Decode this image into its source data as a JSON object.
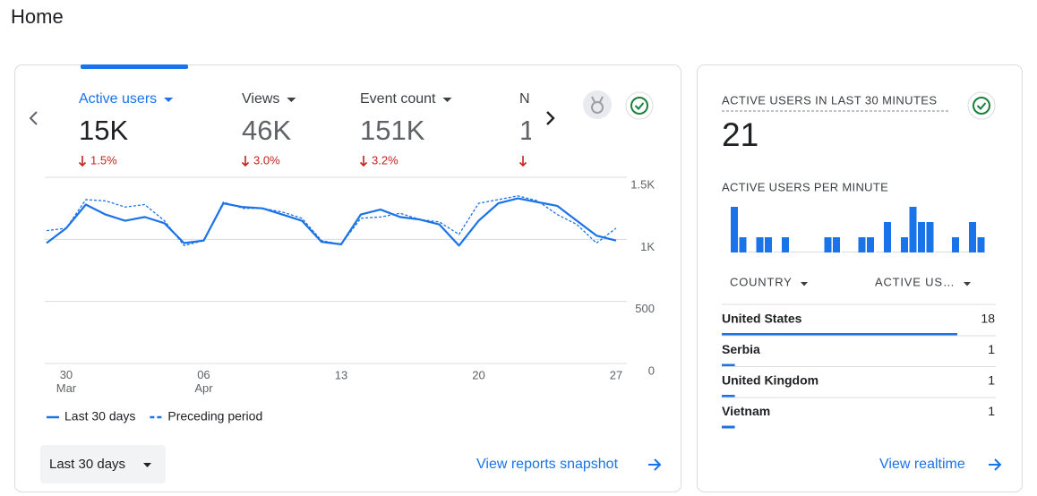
{
  "header": {
    "title": "Home"
  },
  "metrics": [
    {
      "label": "Active users",
      "value": "15K",
      "change": "1.5%"
    },
    {
      "label": "Views",
      "value": "46K",
      "change": "3.0%"
    },
    {
      "label": "Event count",
      "value": "151K",
      "change": "3.2%"
    },
    {
      "label": "N",
      "value": "1"
    }
  ],
  "chart_data": {
    "type": "line",
    "categories": [
      null,
      "30 Mar",
      null,
      null,
      null,
      null,
      null,
      null,
      "06 Apr",
      null,
      null,
      null,
      null,
      null,
      null,
      "13",
      null,
      null,
      null,
      null,
      null,
      null,
      "20",
      null,
      null,
      null,
      null,
      null,
      null,
      "27"
    ],
    "series": [
      {
        "name": "Last 30 days",
        "color": "#1a73e8",
        "style": "solid",
        "values": [
          970,
          1090,
          1280,
          1200,
          1150,
          1180,
          1130,
          970,
          990,
          1290,
          1260,
          1250,
          1200,
          1150,
          980,
          960,
          1200,
          1240,
          1180,
          1160,
          1120,
          950,
          1150,
          1290,
          1330,
          1300,
          1270,
          1150,
          1030,
          990
        ]
      },
      {
        "name": "Preceding period",
        "color": "#1a73e8",
        "style": "dashed",
        "values": [
          1070,
          1090,
          1320,
          1310,
          1260,
          1280,
          1150,
          950,
          990,
          1300,
          1250,
          1250,
          1220,
          1170,
          990,
          960,
          1170,
          1180,
          1210,
          1160,
          1140,
          1040,
          1290,
          1320,
          1350,
          1310,
          1200,
          1120,
          970,
          1090
        ]
      }
    ],
    "ylim": [
      0,
      1500
    ],
    "yticks": [
      0,
      500,
      {
        "value": 1000,
        "label": "1K"
      },
      {
        "value": 1500,
        "label": "1.5K"
      }
    ],
    "grid": true
  },
  "date_range": "Last 30 days",
  "snapshot_link": "View reports snapshot",
  "realtime": {
    "title": "ACTIVE USERS IN LAST 30 MINUTES",
    "count": "21",
    "per_minute": {
      "type": "bar",
      "title": "ACTIVE USERS PER MINUTE",
      "color": "#1a73e8",
      "values": [
        3,
        1,
        0,
        1,
        1,
        0,
        1,
        0,
        0,
        0,
        0,
        1,
        1,
        0,
        0,
        1,
        1,
        0,
        2,
        0,
        1,
        3,
        2,
        2,
        0,
        0,
        1,
        0,
        2,
        1
      ]
    },
    "table": {
      "columns": [
        "COUNTRY",
        "ACTIVE US…"
      ],
      "rows": [
        [
          "United States",
          18
        ],
        [
          "Serbia",
          1
        ],
        [
          "United Kingdom",
          1
        ],
        [
          "Vietnam",
          1
        ]
      ]
    },
    "link": "View realtime"
  }
}
